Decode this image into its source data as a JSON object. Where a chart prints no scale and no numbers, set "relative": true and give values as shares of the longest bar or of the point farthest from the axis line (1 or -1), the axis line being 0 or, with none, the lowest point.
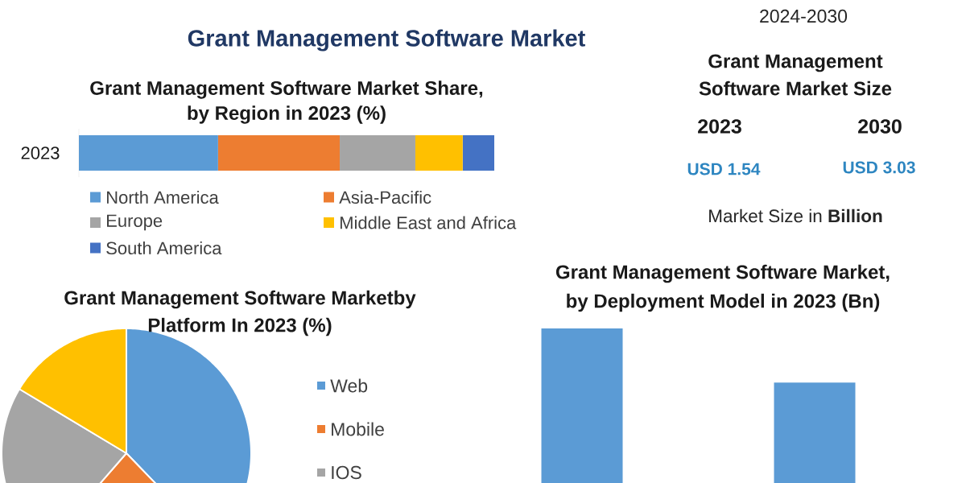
{
  "chart_data": [
    {
      "type": "bar",
      "orientation": "horizontal",
      "stacked": true,
      "relative": true,
      "title": "Grant Management Software Market Share, by Region in 2023 (%)",
      "categories": [
        "2023"
      ],
      "series": [
        {
          "name": "North America",
          "color": "#5b9bd5",
          "values": [
            0.335
          ]
        },
        {
          "name": "Asia-Pacific",
          "color": "#ed7d31",
          "values": [
            0.293
          ]
        },
        {
          "name": "Europe",
          "color": "#a5a5a5",
          "values": [
            0.182
          ]
        },
        {
          "name": "Middle East and Africa",
          "color": "#ffc000",
          "values": [
            0.114
          ]
        },
        {
          "name": "South America",
          "color": "#4472c4",
          "values": [
            0.076
          ]
        }
      ],
      "legend": "bottom",
      "annotations": [
        "Grant Management Software Market"
      ]
    },
    {
      "type": "other",
      "title": "Grant Management Software Market Size",
      "annotations": [
        "2024-2030",
        "2023",
        "2030",
        "USD 1.54",
        "USD 3.03",
        "Market Size in **Billion**"
      ]
    },
    {
      "type": "pie",
      "title": "Grant Management Software Marketby Platform In 2023 (%)",
      "categories": [
        "Web",
        "Mobile",
        "IOS",
        null
      ],
      "values": [
        37.8,
        23.6,
        22.2,
        16.4
      ],
      "colors": [
        "#5b9bd5",
        "#ed7d31",
        "#a5a5a5",
        "#ffc000"
      ],
      "legend": "right"
    },
    {
      "type": "bar",
      "relative": true,
      "title": "Grant Management Software Market, by Deployment Model in 2023 (Bn)",
      "categories": [
        null,
        null
      ],
      "values": [
        1,
        0.65
      ],
      "color": "#5b9bd5"
    }
  ]
}
